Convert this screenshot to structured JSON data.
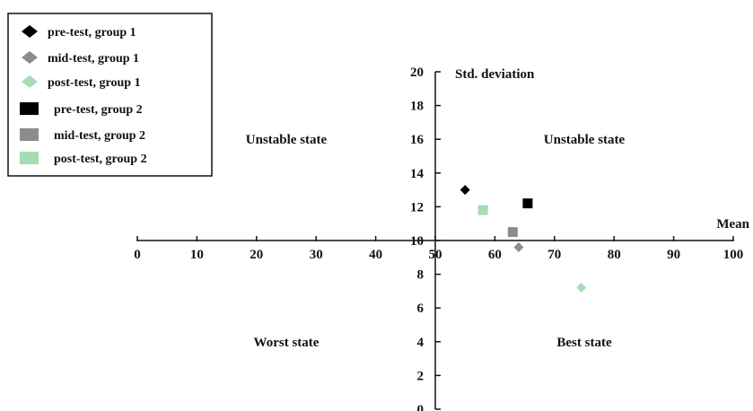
{
  "chart_data": {
    "type": "scatter",
    "xlabel": "Mean",
    "ylabel": "Std. deviation",
    "xlim": [
      0,
      100
    ],
    "ylim": [
      0,
      20
    ],
    "x_ticks": [
      0,
      10,
      20,
      30,
      40,
      50,
      60,
      70,
      80,
      90,
      100
    ],
    "y_ticks": [
      0,
      2,
      4,
      6,
      8,
      10,
      12,
      14,
      16,
      18,
      20
    ],
    "x_axis_at_y": 10,
    "y_axis_at_x": 50,
    "grid": false,
    "legend_position": "top-left",
    "regions": [
      {
        "label": "Unstable state",
        "x": 25,
        "y": 16
      },
      {
        "label": "Unstable state",
        "x": 75,
        "y": 16
      },
      {
        "label": "Worst state",
        "x": 25,
        "y": 4
      },
      {
        "label": "Best state",
        "x": 75,
        "y": 4
      }
    ],
    "series": [
      {
        "name": "pre-test, group 1",
        "marker": "diamond",
        "color": "#000000",
        "x": 55,
        "y": 13.0
      },
      {
        "name": "mid-test, group 1",
        "marker": "diamond",
        "color": "#8c8c8c",
        "x": 64,
        "y": 9.6
      },
      {
        "name": "post-test, group 1",
        "marker": "diamond",
        "color": "#a6dcb4",
        "x": 74.5,
        "y": 7.2
      },
      {
        "name": "pre-test, group 2",
        "marker": "square",
        "color": "#000000",
        "x": 65.5,
        "y": 12.2
      },
      {
        "name": "mid-test, group 2",
        "marker": "square",
        "color": "#8c8c8c",
        "x": 63,
        "y": 10.5
      },
      {
        "name": "post-test, group 2",
        "marker": "square",
        "color": "#a6dcb4",
        "x": 58,
        "y": 11.8
      }
    ]
  }
}
